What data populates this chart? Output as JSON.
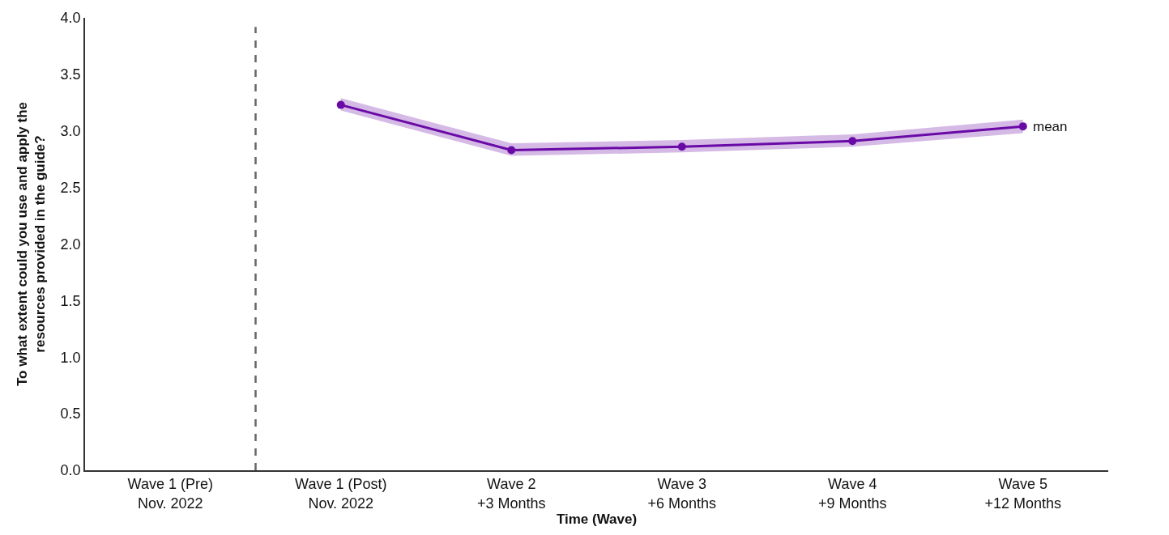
{
  "chart_data": {
    "type": "line",
    "xlabel": "Time (Wave)",
    "ylabel": "To what extent could you use and apply the resources provided in the guide?",
    "categories": [
      "Wave 1 (Pre)\nNov. 2022",
      "Wave 1 (Post)\nNov. 2022",
      "Wave 2\n+3 Months",
      "Wave 3\n+6 Months",
      "Wave 4\n+9 Months",
      "Wave 5\n+12 Months"
    ],
    "series": [
      {
        "name": "mean",
        "color": "#6a0aa6",
        "values": [
          null,
          3.23,
          2.83,
          2.86,
          2.91,
          3.04
        ],
        "lower": [
          null,
          3.18,
          2.78,
          2.81,
          2.86,
          2.98
        ],
        "upper": [
          null,
          3.29,
          2.89,
          2.92,
          2.97,
          3.1
        ]
      }
    ],
    "ylim": [
      0,
      4.0
    ],
    "yticks": [
      {
        "value": 0,
        "label": "0.0"
      },
      {
        "value": 0.5,
        "label": "0.5"
      },
      {
        "value": 1,
        "label": "1.0"
      },
      {
        "value": 1.5,
        "label": "1.5"
      },
      {
        "value": 2,
        "label": "2.0"
      },
      {
        "value": 2.5,
        "label": "2.5"
      },
      {
        "value": 3,
        "label": "3.0"
      },
      {
        "value": 3.5,
        "label": "3.5"
      },
      {
        "value": 4,
        "label": "4.0"
      }
    ],
    "marker": "circle",
    "line_style": "solid"
  }
}
